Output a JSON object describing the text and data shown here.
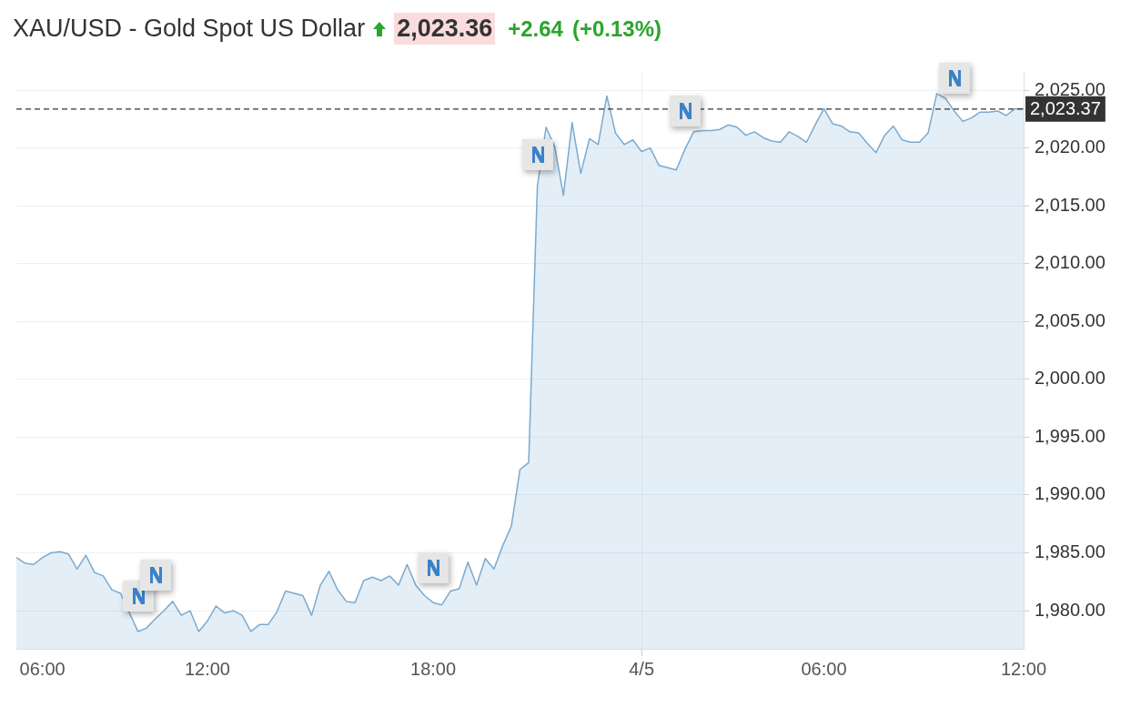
{
  "chart_data": {
    "type": "area",
    "title": "XAU/USD - Gold Spot US Dollar",
    "annotations": [
      "2,023.36",
      "+2.64",
      "(+0.13%)"
    ],
    "categories": [
      null,
      null,
      null,
      "06:00",
      null,
      null,
      null,
      null,
      null,
      null,
      null,
      null,
      null,
      null,
      null,
      null,
      null,
      null,
      null,
      null,
      null,
      null,
      "12:00",
      null,
      null,
      null,
      null,
      null,
      null,
      null,
      null,
      null,
      null,
      null,
      null,
      null,
      null,
      null,
      null,
      null,
      null,
      null,
      null,
      null,
      null,
      null,
      null,
      null,
      "18:00",
      null,
      null,
      null,
      null,
      null,
      null,
      null,
      null,
      null,
      null,
      null,
      null,
      null,
      null,
      null,
      null,
      null,
      null,
      null,
      null,
      null,
      null,
      null,
      "4/5",
      null,
      null,
      null,
      null,
      null,
      null,
      null,
      null,
      null,
      null,
      null,
      null,
      null,
      null,
      null,
      null,
      null,
      null,
      null,
      null,
      "06:00",
      null,
      null,
      null,
      null,
      null,
      null,
      null,
      null,
      null,
      null,
      null,
      null,
      null,
      null,
      null,
      null,
      null,
      null,
      null,
      null,
      null,
      null,
      "12:00"
    ],
    "series": [
      {
        "color": "#7aaad0",
        "values": [
          1984.6,
          1984.1,
          1984.0,
          1984.6,
          1985.0,
          1985.1,
          1984.9,
          1983.6,
          1984.8,
          1983.3,
          1983.0,
          1981.8,
          1981.5,
          null,
          1978.2,
          1978.5,
          1979.3,
          1980.0,
          1980.8,
          1979.6,
          1980.0,
          1978.2,
          1979.1,
          1980.4,
          1979.8,
          1980.0,
          1979.6,
          1978.2,
          1978.8,
          1978.8,
          1979.9,
          1981.7,
          1981.5,
          1981.3,
          1979.6,
          1982.2,
          1983.4,
          1981.8,
          1980.8,
          1980.7,
          1982.6,
          1982.9,
          1982.6,
          1983.0,
          1982.2,
          1984.0,
          1982.2,
          1981.3,
          1980.7,
          1980.5,
          1981.7,
          1981.9,
          1984.2,
          1982.2,
          1984.5,
          1983.6,
          1985.6,
          1987.3,
          1992.2,
          1992.8,
          2016.7,
          2021.8,
          2020.1,
          2015.9,
          2022.2,
          2017.8,
          2020.8,
          2020.3,
          2024.5,
          2021.3,
          2020.3,
          2020.7,
          2019.7,
          2020.0,
          2018.5,
          2018.3,
          2018.1,
          2019.9,
          2021.4,
          2021.5,
          2021.5,
          2021.6,
          2022.0,
          2021.8,
          2021.1,
          2021.4,
          2020.9,
          2020.6,
          2020.5,
          2021.4,
          2021.0,
          2020.5,
          2022.0,
          2023.4,
          2022.1,
          2021.9,
          2021.4,
          2021.3,
          2020.4,
          2019.6,
          2021.1,
          2021.9,
          2020.7,
          2020.5,
          2020.5,
          2021.3,
          2024.7,
          2024.3,
          2023.2,
          2022.3,
          2022.6,
          2023.1,
          2023.1,
          2023.2,
          2022.8,
          2023.4,
          2023.4
        ]
      }
    ],
    "ylim": [
      1976.7,
      2026.5
    ],
    "yticks": [
      {
        "value": 1980,
        "label": "1,980.00"
      },
      {
        "value": 1985,
        "label": "1,985.00"
      },
      {
        "value": 1990,
        "label": "1,990.00"
      },
      {
        "value": 1995,
        "label": "1,995.00"
      },
      {
        "value": 2000,
        "label": "2,000.00"
      },
      {
        "value": 2005,
        "label": "2,005.00"
      },
      {
        "value": 2010,
        "label": "2,010.00"
      },
      {
        "value": 2015,
        "label": "2,015.00"
      },
      {
        "value": 2020,
        "label": "2,020.00"
      },
      {
        "value": 2025,
        "label": "2,025.00"
      }
    ],
    "ref_lines": [
      {
        "axis": "y",
        "value": 2023.37,
        "label": "2,023.37",
        "color": "#333333",
        "line_style": "dashed"
      }
    ],
    "grid": true,
    "marker": "none",
    "line_style": "solid"
  }
}
